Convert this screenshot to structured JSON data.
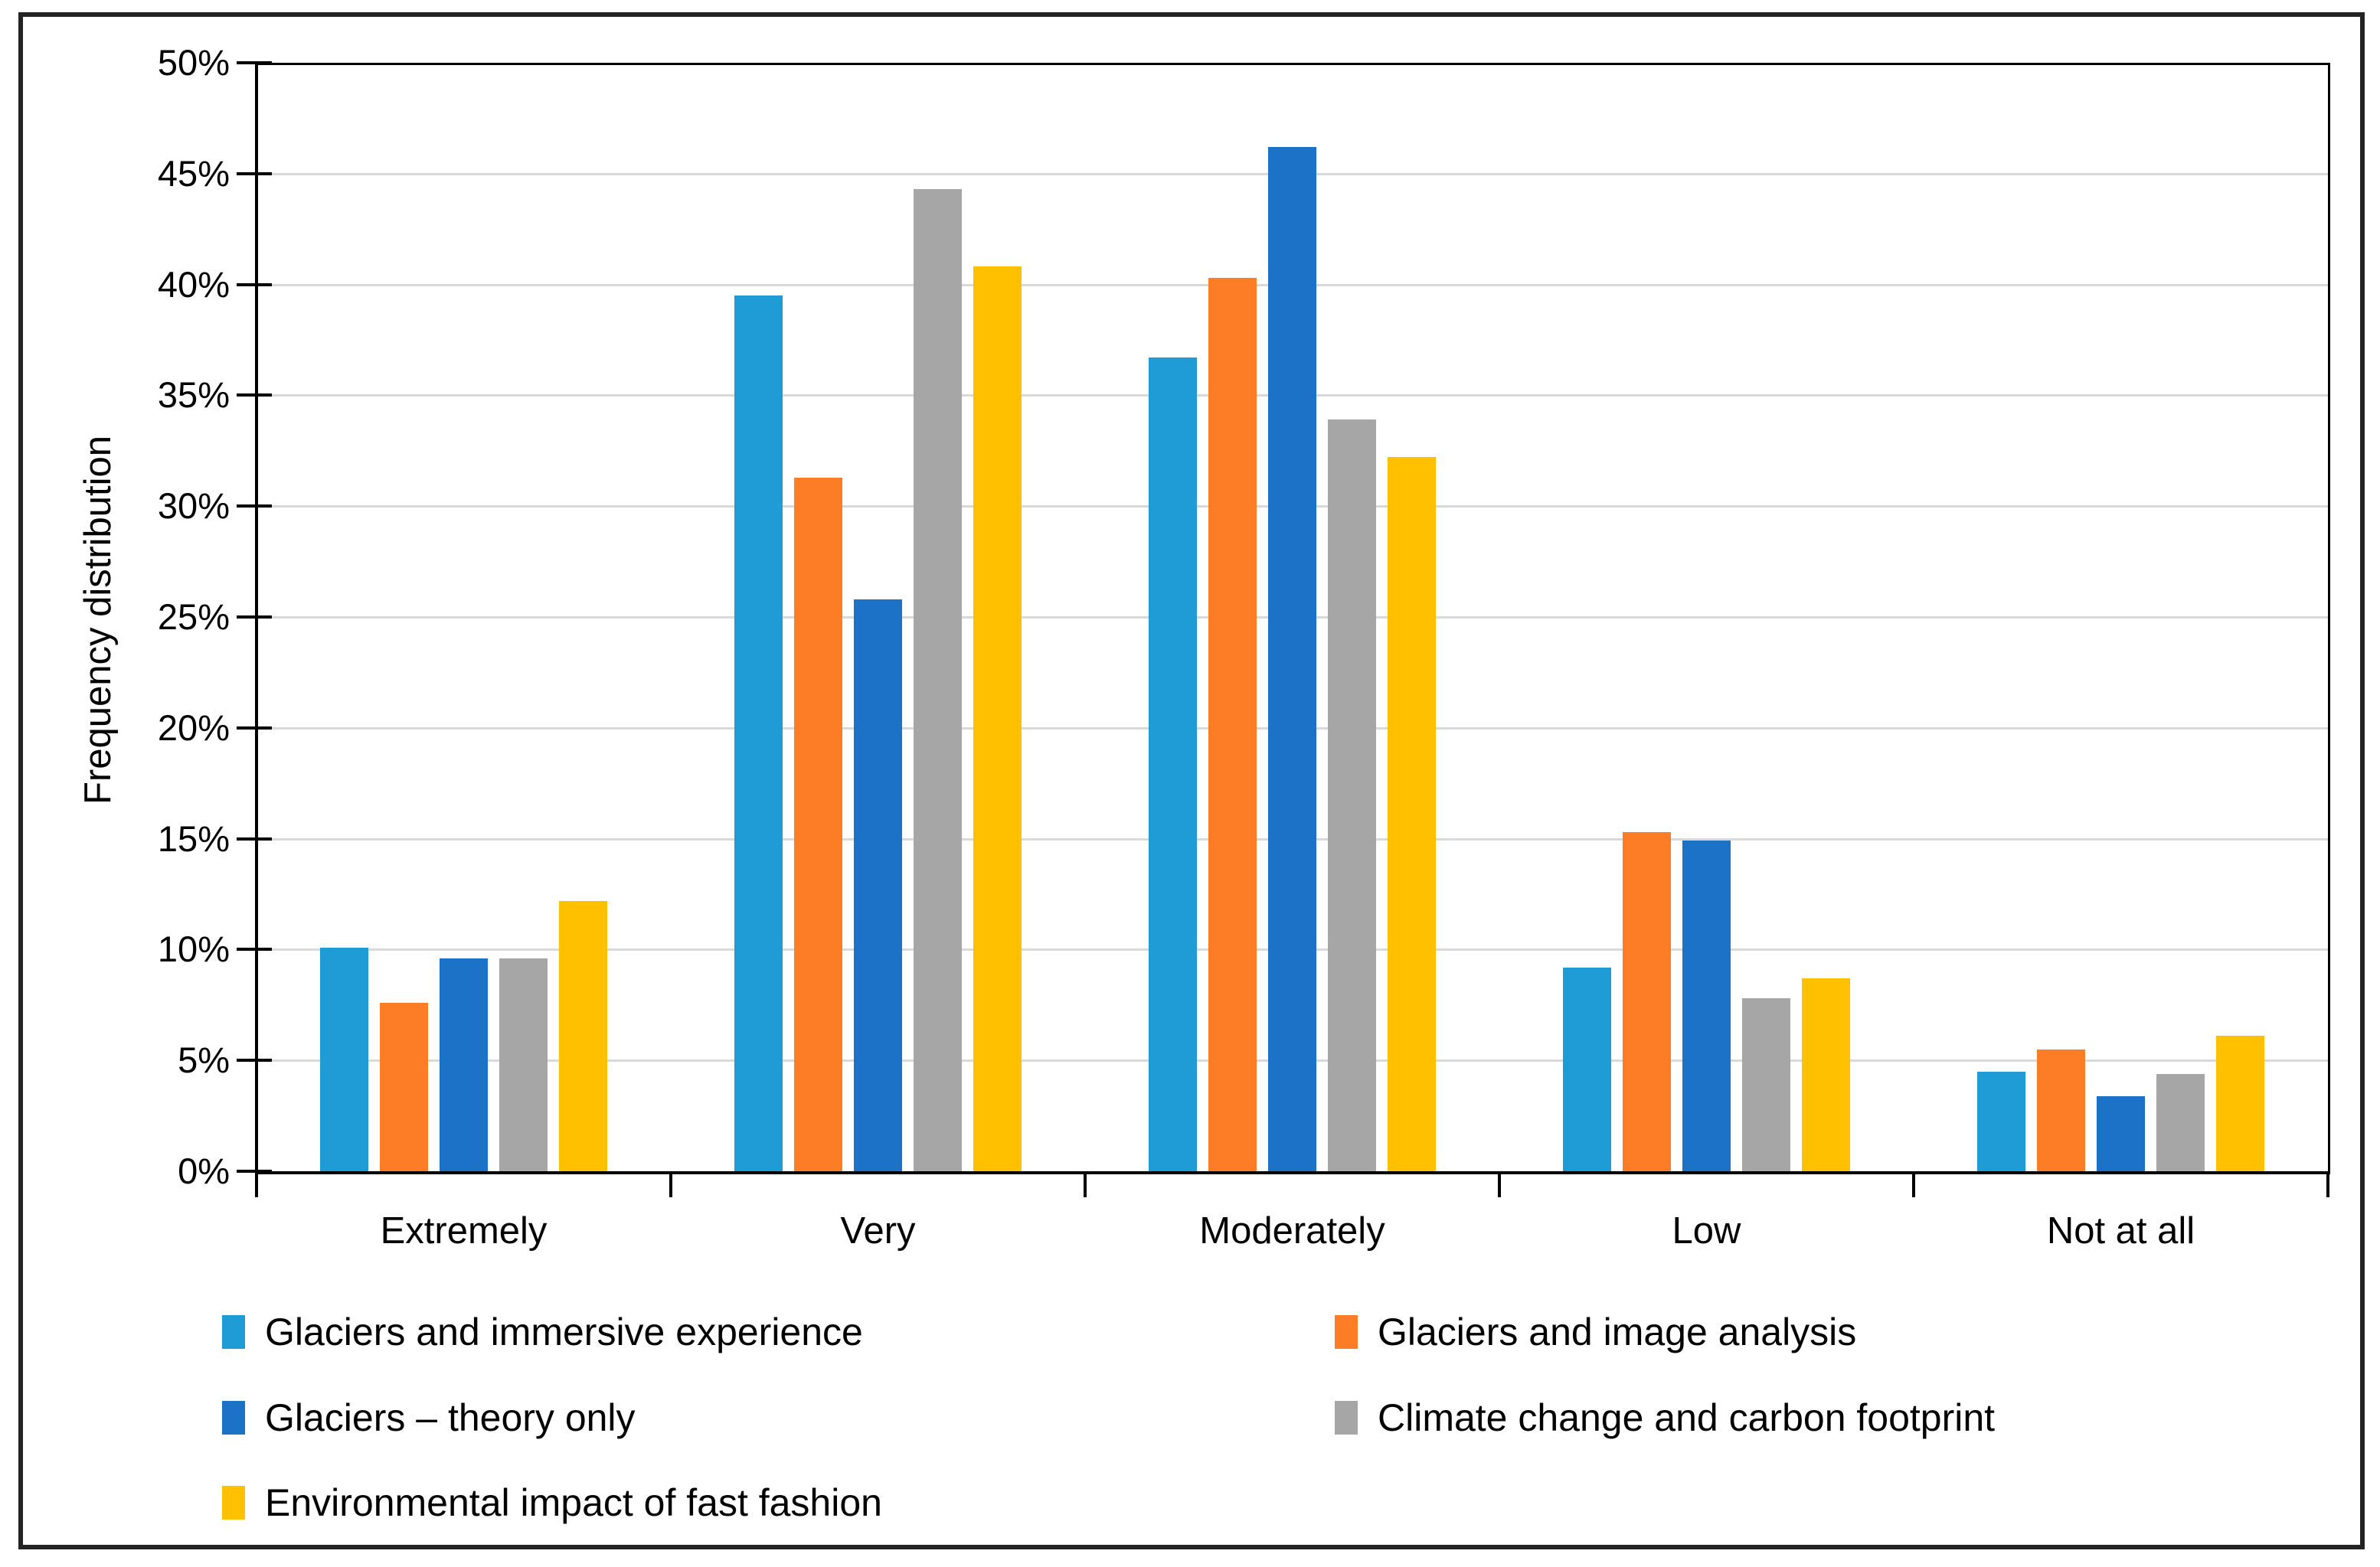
{
  "figure": {
    "ylabel": "Frequency distribution"
  },
  "chart_data": {
    "type": "bar",
    "title": "",
    "xlabel": "",
    "ylabel": "Frequency distribution",
    "categories": [
      "Extremely",
      "Very",
      "Moderately",
      "Low",
      "Not at all"
    ],
    "series": [
      {
        "name": "Glaciers and immersive experience",
        "color": "#1F9BD6",
        "values": [
          10.1,
          39.5,
          36.7,
          9.2,
          4.5
        ]
      },
      {
        "name": "Glaciers and image analysis",
        "color": "#FC7D26",
        "values": [
          7.6,
          31.3,
          40.3,
          15.3,
          5.5
        ]
      },
      {
        "name": "Glaciers – theory only",
        "color": "#1B72C6",
        "values": [
          9.6,
          25.8,
          46.2,
          14.9,
          3.4
        ]
      },
      {
        "name": "Climate change and carbon footprint",
        "color": "#A6A6A6",
        "values": [
          9.6,
          44.3,
          33.9,
          7.8,
          4.4
        ]
      },
      {
        "name": "Environmental impact of fast fashion",
        "color": "#FFC000",
        "values": [
          12.2,
          40.8,
          32.2,
          8.7,
          6.1
        ]
      }
    ],
    "ylim": [
      0,
      50
    ],
    "ytick_step": 5,
    "ytick_format": "percent",
    "grid": true,
    "gridline_color": "#D9D9D9",
    "axis_color": "#000000",
    "legend_position": "bottom"
  }
}
